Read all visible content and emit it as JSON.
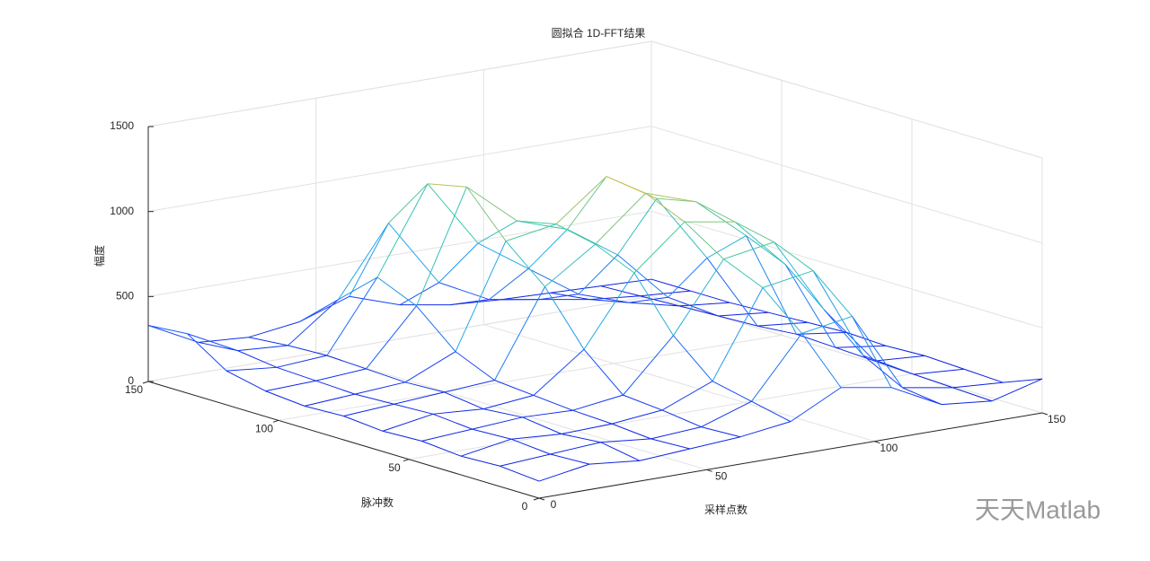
{
  "chart_data": {
    "type": "mesh3d",
    "title": "圆拟合 1D-FFT结果",
    "xlabel": "采样点数",
    "ylabel": "脉冲数",
    "zlabel": "幅度",
    "watermark": "天天Matlab",
    "x": [
      0,
      15,
      30,
      45,
      60,
      75,
      90,
      105,
      120,
      135,
      150
    ],
    "y": [
      0,
      15,
      30,
      45,
      60,
      75,
      90,
      105,
      120,
      135,
      150
    ],
    "z": [
      [
        100,
        150,
        120,
        140,
        160,
        200,
        350,
        300,
        150,
        120,
        200
      ],
      [
        120,
        140,
        160,
        130,
        150,
        250,
        600,
        650,
        180,
        130,
        110
      ],
      [
        110,
        160,
        140,
        150,
        180,
        300,
        800,
        850,
        300,
        140,
        120
      ],
      [
        130,
        150,
        170,
        160,
        200,
        500,
        900,
        950,
        500,
        150,
        130
      ],
      [
        120,
        170,
        150,
        180,
        400,
        800,
        1050,
        1000,
        700,
        160,
        120
      ],
      [
        140,
        160,
        180,
        200,
        700,
        900,
        1150,
        1050,
        800,
        170,
        130
      ],
      [
        130,
        150,
        170,
        300,
        900,
        950,
        1180,
        1000,
        600,
        150,
        120
      ],
      [
        150,
        160,
        180,
        500,
        1150,
        900,
        800,
        600,
        300,
        140,
        110
      ],
      [
        200,
        170,
        190,
        600,
        1100,
        700,
        500,
        300,
        200,
        130,
        100
      ],
      [
        350,
        200,
        180,
        400,
        800,
        400,
        250,
        200,
        150,
        120,
        100
      ],
      [
        330,
        180,
        160,
        200,
        300,
        200,
        150,
        130,
        120,
        110,
        100
      ]
    ],
    "xlim": [
      0,
      150
    ],
    "ylim": [
      0,
      150
    ],
    "zlim": [
      0,
      1500
    ],
    "xticks": [
      0,
      50,
      100,
      150
    ],
    "yticks": [
      0,
      50,
      100,
      150
    ],
    "zticks": [
      0,
      500,
      1000,
      1500
    ],
    "grid": true,
    "colormap": [
      "#0000d0",
      "#1a50ff",
      "#20a8e8",
      "#3cc8a8",
      "#e0c040",
      "#f8e020"
    ]
  }
}
